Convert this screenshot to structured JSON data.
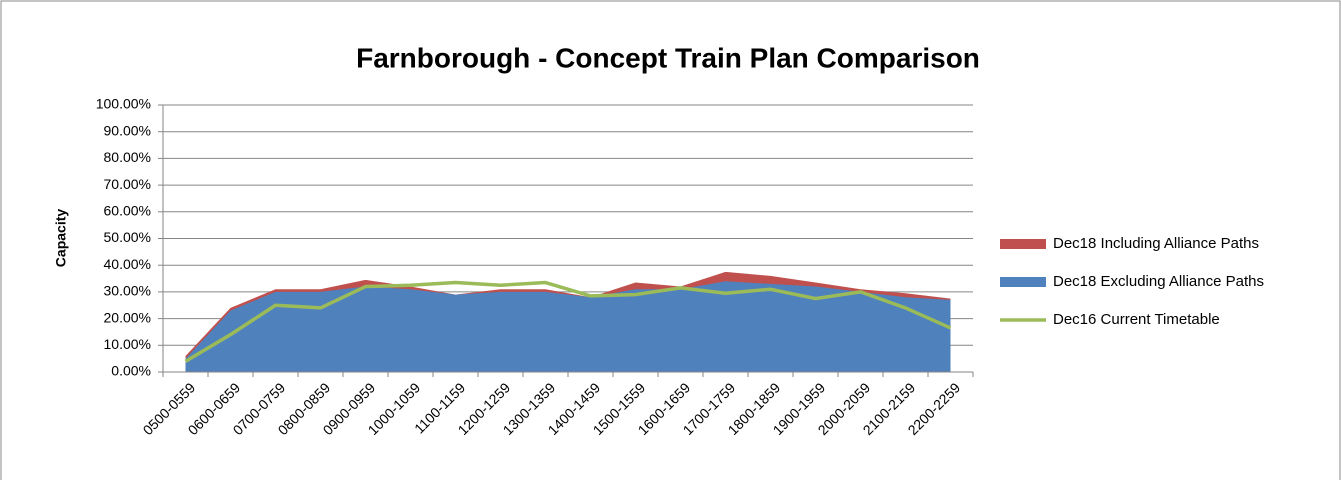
{
  "chart_data": {
    "type": "area",
    "title": "Farnborough - Concept Train Plan Comparison",
    "ylabel": "Capacity",
    "categories": [
      "0500-0559",
      "0600-0659",
      "0700-0759",
      "0800-0859",
      "0900-0959",
      "1000-1059",
      "1100-1159",
      "1200-1259",
      "1300-1359",
      "1400-1459",
      "1500-1559",
      "1600-1659",
      "1700-1759",
      "1800-1859",
      "1900-1959",
      "2000-2059",
      "2100-2159",
      "2200-2259"
    ],
    "series": [
      {
        "name": "Dec18 Including Alliance Paths",
        "color": "#c0504d",
        "kind": "area",
        "values": [
          6,
          24,
          31,
          31,
          34.5,
          32,
          29,
          31,
          31,
          28,
          33.5,
          32,
          37.5,
          36,
          33.5,
          31,
          29.5,
          27.5
        ]
      },
      {
        "name": "Dec18 Excluding Alliance Paths",
        "color": "#4f81bd",
        "kind": "area",
        "values": [
          5,
          23,
          30,
          30,
          32,
          31,
          29,
          30,
          30,
          28,
          31,
          31,
          34,
          33,
          32,
          30,
          28,
          27
        ]
      },
      {
        "name": "Dec16 Current Timetable",
        "color": "#9bbb59",
        "kind": "line",
        "values": [
          4,
          14,
          25,
          24,
          32,
          32.5,
          33.5,
          32.5,
          33.5,
          28.5,
          29,
          31.5,
          29.5,
          31,
          27.5,
          30,
          24,
          16.5
        ]
      }
    ],
    "ylim": [
      0,
      100
    ],
    "yticks": [
      {
        "value": 0,
        "label": "0.00%"
      },
      {
        "value": 10,
        "label": "10.00%"
      },
      {
        "value": 20,
        "label": "20.00%"
      },
      {
        "value": 30,
        "label": "30.00%"
      },
      {
        "value": 40,
        "label": "40.00%"
      },
      {
        "value": 50,
        "label": "50.00%"
      },
      {
        "value": 60,
        "label": "60.00%"
      },
      {
        "value": 70,
        "label": "70.00%"
      },
      {
        "value": 80,
        "label": "80.00%"
      },
      {
        "value": 90,
        "label": "90.00%"
      },
      {
        "value": 100,
        "label": "100.00%"
      }
    ],
    "grid": true,
    "legend": "right"
  }
}
